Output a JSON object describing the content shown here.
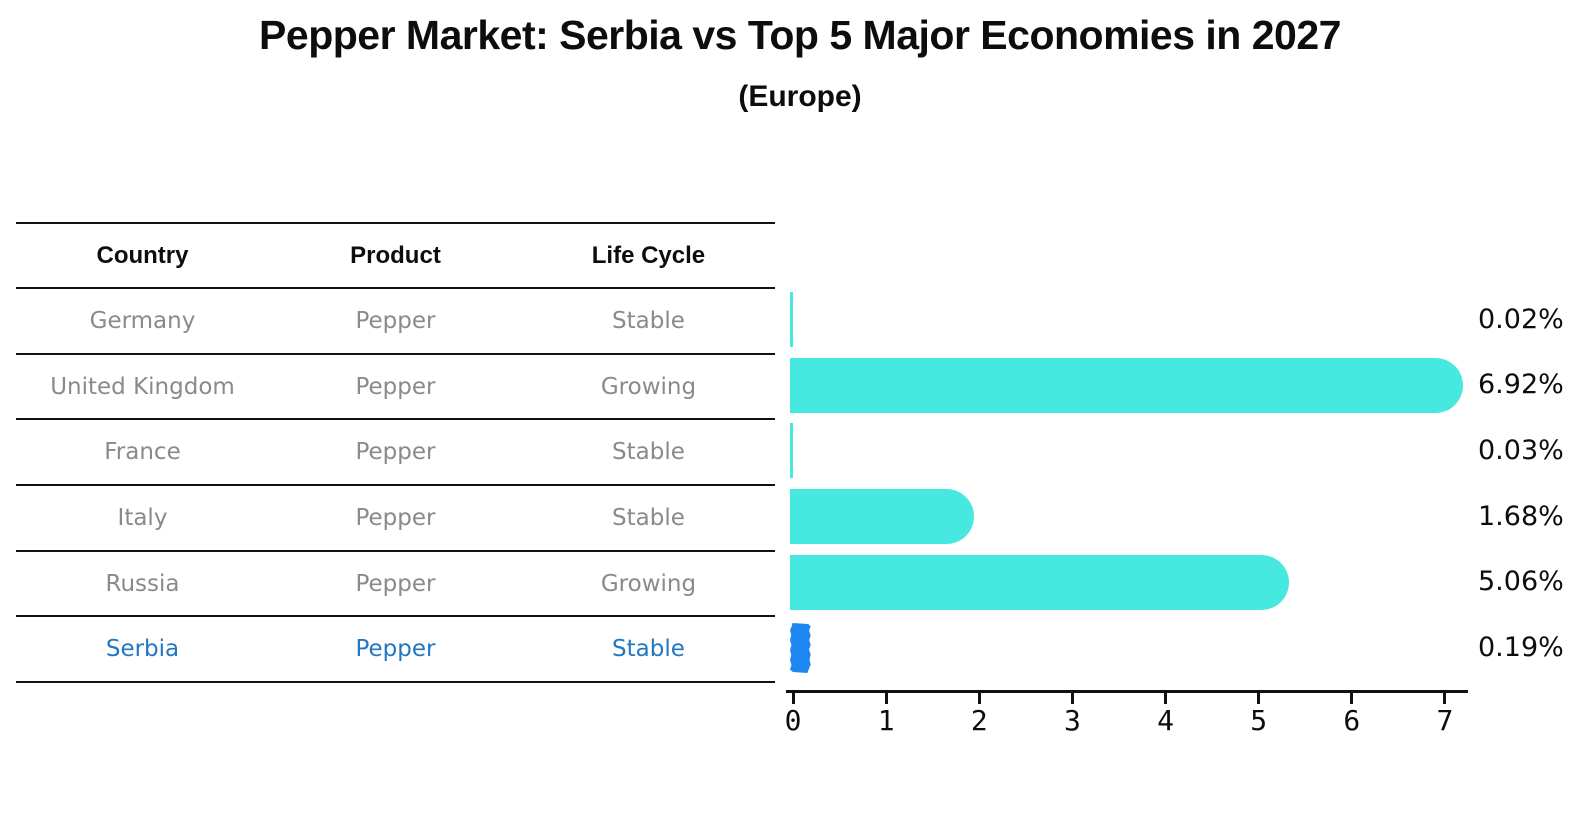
{
  "title": "Pepper Market: Serbia vs Top 5 Major Economies in 2027",
  "subtitle": "(Europe)",
  "table": {
    "columns": [
      "Country",
      "Product",
      "Life Cycle"
    ],
    "rows": [
      {
        "country": "Germany",
        "product": "Pepper",
        "life_cycle": "Stable",
        "highlight": false
      },
      {
        "country": "United Kingdom",
        "product": "Pepper",
        "life_cycle": "Growing",
        "highlight": false
      },
      {
        "country": "France",
        "product": "Pepper",
        "life_cycle": "Stable",
        "highlight": false
      },
      {
        "country": "Italy",
        "product": "Pepper",
        "life_cycle": "Stable",
        "highlight": false
      },
      {
        "country": "Russia",
        "product": "Pepper",
        "life_cycle": "Growing",
        "highlight": false
      },
      {
        "country": "Serbia",
        "product": "Pepper",
        "life_cycle": "Stable",
        "highlight": true
      }
    ]
  },
  "chart_data": {
    "type": "bar",
    "orientation": "horizontal",
    "title": "Pepper Market: Serbia vs Top 5 Major Economies in 2027",
    "subtitle": "(Europe)",
    "categories": [
      "Germany",
      "United Kingdom",
      "France",
      "Italy",
      "Russia",
      "Serbia"
    ],
    "values": [
      0.02,
      6.92,
      0.03,
      1.68,
      5.06,
      0.19
    ],
    "value_labels": [
      "0.02%",
      "6.92%",
      "0.03%",
      "1.68%",
      "5.06%",
      "0.19%"
    ],
    "highlight_index": 5,
    "xlabel": "",
    "ylabel": "",
    "xlim": [
      0,
      7.3
    ],
    "x_ticks": [
      0,
      1,
      2,
      3,
      4,
      5,
      6,
      7
    ],
    "grid": false,
    "legend": false
  },
  "colors": {
    "bar": "#47E8E0",
    "highlight_bar": "#1E86F0",
    "highlight_text": "#2277C3",
    "cell_text": "#8a8a8a",
    "axis": "#111111",
    "title_text": "#0d0d0d",
    "background": "#ffffff"
  }
}
